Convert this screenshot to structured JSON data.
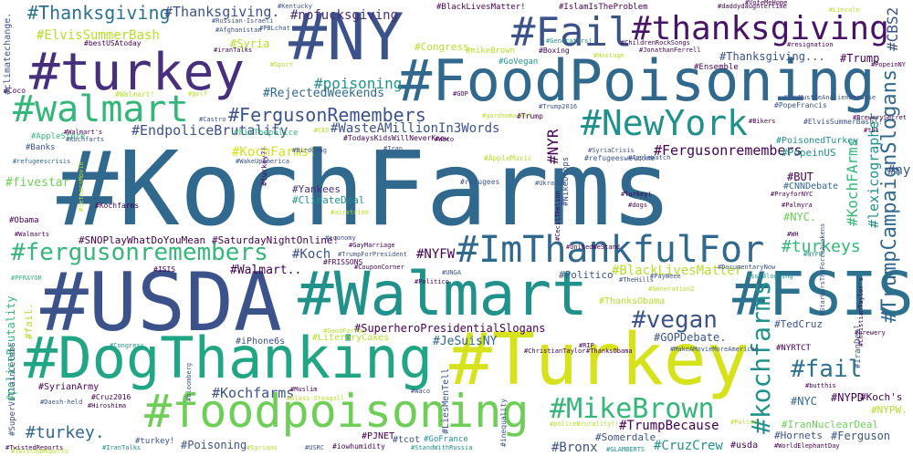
{
  "palette": {
    "deep_purple": "#440154",
    "purple": "#472f7d",
    "indigo": "#3b528b",
    "blue": "#31688e",
    "teal": "#21918c",
    "green": "#35b779",
    "light_green": "#6ece58",
    "lime": "#b5de2b",
    "yellow": "#d6e21b"
  },
  "words": [
    {
      "text": "#KochFarms",
      "color": "#31688e"
    },
    {
      "text": "#USDA",
      "color": "#3b528b"
    },
    {
      "text": "#Turkey",
      "color": "#d6e21b"
    },
    {
      "text": "#Walmart",
      "color": "#21918c"
    },
    {
      "text": "#FoodPoisoning",
      "color": "#31688e"
    },
    {
      "text": "#turkey",
      "color": "#472f7d"
    },
    {
      "text": "#NY",
      "color": "#3b528b"
    },
    {
      "text": "#FSIS",
      "color": "#2c728e"
    },
    {
      "text": "#DogThanking",
      "color": "#21a685"
    },
    {
      "text": "#foodpoisoning",
      "color": "#6ece58"
    },
    {
      "text": "#Fail",
      "color": "#3b528b"
    },
    {
      "text": "#thanksgiving",
      "color": "#481467"
    },
    {
      "text": "#NewYork",
      "color": "#21918c"
    },
    {
      "text": "#ImThankfulFor",
      "color": "#31688e"
    },
    {
      "text": "#walmart",
      "color": "#35b779"
    },
    {
      "text": "#fergusonremembers",
      "color": "#35b779"
    },
    {
      "text": "#MikeBrown",
      "color": "#35b779"
    },
    {
      "text": "#kochfarms",
      "color": "#21918c"
    },
    {
      "text": "#TrumpCampaignSlogans",
      "color": "#31688e"
    },
    {
      "text": "#vegan",
      "color": "#3b528b"
    },
    {
      "text": "#fail",
      "color": "#2c728e"
    },
    {
      "text": "#FergusonRemembers",
      "color": "#3b528b"
    },
    {
      "text": "#Thanksgiving",
      "color": "#2c728e"
    },
    {
      "text": "#ElvisSummerBash",
      "color": "#b5de2b"
    },
    {
      "text": "#Thanksgiving.",
      "color": "#3b528b"
    },
    {
      "text": "#nofucksgiving",
      "color": "#472f7d"
    },
    {
      "text": "#poisoning",
      "color": "#21918c"
    },
    {
      "text": "#KochFArms",
      "color": "#35b779"
    },
    {
      "text": "#turkeys",
      "color": "#35b779"
    },
    {
      "text": "#Fergusonremembers",
      "color": "#440154"
    },
    {
      "text": "#EndpoliceBrutality",
      "color": "#3b528b"
    },
    {
      "text": "#WasteAMillionIn3Words",
      "color": "#3b528b"
    },
    {
      "text": "#RejectedWeekends",
      "color": "#31688e"
    },
    {
      "text": "#KochFarms!",
      "color": "#d6e21b"
    },
    {
      "text": "#NYR",
      "color": "#440154"
    },
    {
      "text": "#lexicographer",
      "color": "#21918c"
    },
    {
      "text": "#turkey.",
      "color": "#31688e"
    },
    {
      "text": "#Kochfarms",
      "color": "#3b528b"
    },
    {
      "text": "#TrumpBecause",
      "color": "#440154"
    },
    {
      "text": "#CruzCrew",
      "color": "#21918c"
    },
    {
      "text": "#Bronx",
      "color": "#3b528b"
    },
    {
      "text": "#GOPDebate.",
      "color": "#3b528b"
    },
    {
      "text": "#JeSuisNY",
      "color": "#31688e"
    },
    {
      "text": "#SuperheroPresidentialSlogans",
      "color": "#440154"
    },
    {
      "text": "#BlackLivesMatter",
      "color": "#b5de2b"
    },
    {
      "text": "#NYFW",
      "color": "#440154"
    },
    {
      "text": "#Koch",
      "color": "#3b528b"
    },
    {
      "text": "#Walmart..",
      "color": "#440154"
    },
    {
      "text": "#SNOPlayWhatDoYouMean",
      "color": "#440154"
    },
    {
      "text": "#SaturdayNightOnline!",
      "color": "#440154"
    },
    {
      "text": "#CBS2",
      "color": "#3b528b"
    },
    {
      "text": "#Trump",
      "color": "#440154"
    },
    {
      "text": "#Thanksgiving...",
      "color": "#3b528b"
    },
    {
      "text": "#Congress",
      "color": "#b5de2b"
    },
    {
      "text": "#fivestar",
      "color": "#6ece58"
    },
    {
      "text": "#Yankees",
      "color": "#472f7d"
    },
    {
      "text": "#ClimateDeal",
      "color": "#21918c"
    },
    {
      "text": "#NYC.",
      "color": "#6ece58"
    },
    {
      "text": "#BUT",
      "color": "#440154"
    },
    {
      "text": "#ny",
      "color": "#3b528b"
    },
    {
      "text": "#NYC",
      "color": "#31688e"
    },
    {
      "text": "#NYPD",
      "color": "#440154"
    },
    {
      "text": "#TedCruz",
      "color": "#3b528b"
    },
    {
      "text": "#IranNuclearDeal",
      "color": "#6ece58"
    },
    {
      "text": "#Ferguson",
      "color": "#3b528b"
    },
    {
      "text": "#Koch's",
      "color": "#440154"
    },
    {
      "text": "#NYPW.",
      "color": "#b5de2b"
    },
    {
      "text": "#Hornets",
      "color": "#3b528b"
    },
    {
      "text": "#policeBrutality",
      "color": "#35b779"
    },
    {
      "text": "#Poisoning",
      "color": "#3b528b"
    },
    {
      "text": "#SyrianArmy",
      "color": "#440154"
    },
    {
      "text": "#Politico",
      "color": "#3b528b"
    },
    {
      "text": "#iPhone6s",
      "color": "#3b528b"
    },
    {
      "text": "#LiteraryCakes",
      "color": "#b5de2b"
    },
    {
      "text": "#Syria",
      "color": "#b5de2b"
    },
    {
      "text": "#ThanksObama",
      "color": "#b5de2b"
    },
    {
      "text": "#PopeinUS",
      "color": "#21918c"
    },
    {
      "text": "#PoisonedTurkey",
      "color": "#21918c"
    },
    {
      "text": "#CNNDebate",
      "color": "#31688e"
    },
    {
      "text": "#Obama",
      "color": "#440154"
    },
    {
      "text": "#Banks",
      "color": "#3b528b"
    },
    {
      "text": "#AppleStore",
      "color": "#35b779"
    },
    {
      "text": "#FixThepolice",
      "color": "#35b779"
    },
    {
      "text": "#GoVegan",
      "color": "#21918c"
    },
    {
      "text": "#mikeBrown",
      "color": "#b5de2b"
    },
    {
      "text": "#Boxing",
      "color": "#440154"
    },
    {
      "text": "#Ensemble",
      "color": "#440154"
    },
    {
      "text": "#PopeFrancis",
      "color": "#3b528b"
    },
    {
      "text": "#ElvisSummerBash!!!",
      "color": "#3b528b"
    },
    {
      "text": "#refugees",
      "color": "#3b528b"
    },
    {
      "text": "#AppleMusic",
      "color": "#b5de2b"
    },
    {
      "text": "#BlackLivesMatter!",
      "color": "#440154"
    },
    {
      "text": "#IslamIsTheProblem",
      "color": "#440154"
    },
    {
      "text": "#bestUSAtoday",
      "color": "#440154"
    },
    {
      "text": "#Russian-Israeli",
      "color": "#3b528b"
    },
    {
      "text": "#refugeescrisis",
      "color": "#31688e"
    },
    {
      "text": "#Kochfarts",
      "color": "#3b528b"
    },
    {
      "text": "#Walmart!",
      "color": "#b5de2b"
    },
    {
      "text": "#fail.",
      "color": "#b5de2b"
    },
    {
      "text": "#Walmarts",
      "color": "#440154"
    },
    {
      "text": "#ISIS",
      "color": "#440154"
    },
    {
      "text": "#PFRAYOR",
      "color": "#35b779"
    },
    {
      "text": "#Waco",
      "color": "#3b528b"
    },
    {
      "text": "#Congress.",
      "color": "#21918c"
    },
    {
      "text": "#bloomberg",
      "color": "#3b528b"
    },
    {
      "text": "#Cruz2016",
      "color": "#440154"
    },
    {
      "text": "#Daesh-held",
      "color": "#3b528b"
    },
    {
      "text": "#Hiroshima",
      "color": "#440154"
    },
    {
      "text": "#Syrians",
      "color": "#b5de2b"
    },
    {
      "text": "#USRC",
      "color": "#3b528b"
    },
    {
      "text": "#iowhumidity",
      "color": "#440154"
    },
    {
      "text": "#tcot",
      "color": "#3b528b"
    },
    {
      "text": "#GoFrance",
      "color": "#21918c"
    },
    {
      "text": "#StandWithRussia",
      "color": "#21918c"
    },
    {
      "text": "#inequality",
      "color": "#3b528b"
    },
    {
      "text": "#PJNET",
      "color": "#440154"
    },
    {
      "text": "#Somerdale",
      "color": "#3b528b"
    },
    {
      "text": "#GLAMBERTS",
      "color": "#21918c"
    },
    {
      "text": "#usda",
      "color": "#440154"
    },
    {
      "text": "#Police",
      "color": "#b5de2b"
    },
    {
      "text": "#WorldElephantDay",
      "color": "#440154"
    },
    {
      "text": "#TwistedReports",
      "color": "#440154"
    },
    {
      "text": "#IranTalks",
      "color": "#21918c"
    },
    {
      "text": "#turkey!",
      "color": "#3b528b"
    },
    {
      "text": "#WH",
      "color": "#440154"
    },
    {
      "text": "#Palmyra",
      "color": "#440154"
    },
    {
      "text": "#PrayforNYC",
      "color": "#440154"
    },
    {
      "text": "#NYFW",
      "color": "#21918c"
    },
    {
      "text": "#TheHills",
      "color": "#3b528b"
    },
    {
      "text": "#CecilThelion",
      "color": "#440154"
    },
    {
      "text": "#GayMarriage",
      "color": "#440154"
    },
    {
      "text": "#TrumpForPresident",
      "color": "#3b528b"
    },
    {
      "text": "#FRISSONS",
      "color": "#440154"
    },
    {
      "text": "#CouponCorner",
      "color": "#440154"
    },
    {
      "text": "#economy",
      "color": "#3b528b"
    },
    {
      "text": "#TodaysKidsWillNeverKnow",
      "color": "#440154"
    },
    {
      "text": "#BirdGang",
      "color": "#3b528b"
    },
    {
      "text": "#Iran",
      "color": "#3b528b"
    },
    {
      "text": "#SyriaCrisis",
      "color": "#3b528b"
    },
    {
      "text": "#refugeeswelcome",
      "color": "#3b528b"
    },
    {
      "text": "#Kentucky",
      "color": "#3b528b"
    },
    {
      "text": "#Afghanistan",
      "color": "#3b528b"
    },
    {
      "text": "#iranTalks",
      "color": "#440154"
    },
    {
      "text": "#PBLchat",
      "color": "#3b528b"
    },
    {
      "text": "#Sport",
      "color": "#b5de2b"
    },
    {
      "text": "#golf",
      "color": "#b5de2b"
    },
    {
      "text": "#Castro",
      "color": "#3b528b"
    },
    {
      "text": "#CEO",
      "color": "#b5de2b"
    },
    {
      "text": "#Coco",
      "color": "#440154"
    },
    {
      "text": "#Bikers",
      "color": "#440154"
    },
    {
      "text": "#BrewerySecret",
      "color": "#440154"
    },
    {
      "text": "#tbt",
      "color": "#440154"
    },
    {
      "text": "#resignation",
      "color": "#440154"
    },
    {
      "text": "#Lincoln",
      "color": "#b5de2b"
    },
    {
      "text": "#daddydaughtertime",
      "color": "#440154"
    },
    {
      "text": "#PopeinNY",
      "color": "#440154"
    },
    {
      "text": "#VoteMeHome",
      "color": "#440154"
    },
    {
      "text": "#ChildrenRockSongs",
      "color": "#440154"
    },
    {
      "text": "#JonathanFerrell",
      "color": "#440154"
    },
    {
      "text": "#GOP",
      "color": "#440154"
    },
    {
      "text": "#Hostage",
      "color": "#b5de2b"
    },
    {
      "text": "#Trump2016",
      "color": "#3b528b"
    },
    {
      "text": "#brewery",
      "color": "#440154"
    },
    {
      "text": "#butthis",
      "color": "#440154"
    },
    {
      "text": "#IranDeal",
      "color": "#3b528b"
    },
    {
      "text": "#ChristianTaylor",
      "color": "#440154"
    },
    {
      "text": "#ChristianTaylor's",
      "color": "#440154"
    },
    {
      "text": "#ThanksObama",
      "color": "#440154"
    },
    {
      "text": "#MakeAMovieMoreAmerican",
      "color": "#3b528b"
    },
    {
      "text": "#NYRTCT",
      "color": "#440154"
    },
    {
      "text": "#LiesMenTell",
      "color": "#3b528b"
    },
    {
      "text": "#RIP",
      "color": "#440154"
    },
    {
      "text": "#policeBrutality!!",
      "color": "#b5de2b"
    },
    {
      "text": "#TwistedReports",
      "color": "#b5de2b"
    },
    {
      "text": "#Generation2",
      "color": "#b5de2b"
    },
    {
      "text": "#DocumentaryNow",
      "color": "#3b528b"
    },
    {
      "text": "#sssBlogging",
      "color": "#21918c"
    },
    {
      "text": "#PayWeee",
      "color": "#3b528b"
    },
    {
      "text": "#Turkey!",
      "color": "#440154"
    },
    {
      "text": "#StarWarsTheForceAwakens",
      "color": "#3b528b"
    },
    {
      "text": "#AppleWatch",
      "color": "#3b528b"
    },
    {
      "text": "#UnitedWeStand",
      "color": "#440154"
    },
    {
      "text": "#Generators!",
      "color": "#21918c"
    },
    {
      "text": "#GoodForYou",
      "color": "#b5de2b"
    },
    {
      "text": "#UNGA",
      "color": "#3b528b"
    },
    {
      "text": "#Muslim",
      "color": "#440154"
    },
    {
      "text": "#lettersMovie",
      "color": "#b5de2b"
    },
    {
      "text": "#Glass-Steagall",
      "color": "#b5de2b"
    },
    {
      "text": "#airstrike",
      "color": "#b5de2b"
    },
    {
      "text": "#gardenmarket",
      "color": "#b5de2b"
    },
    {
      "text": "#WakeUpAmerica",
      "color": "#3b528b"
    },
    {
      "text": "#turkey?!",
      "color": "#440154"
    },
    {
      "text": "#NikeDrops",
      "color": "#3b528b"
    },
    {
      "text": "#Ukraine",
      "color": "#3b528b"
    },
    {
      "text": "#YouMustBeAnAlienBecause",
      "color": "#3b528b"
    },
    {
      "text": "#dogs",
      "color": "#440154"
    },
    {
      "text": "#Politico",
      "color": "#440154"
    },
    {
      "text": "#Kochfarms",
      "color": "#440154"
    },
    {
      "text": "#Walmart's",
      "color": "#440154"
    },
    {
      "text": "#SuperVillainCelebs",
      "color": "#3b528b"
    },
    {
      "text": "#Waco",
      "color": "#440154"
    },
    {
      "text": "#climatechange.",
      "color": "#3b528b"
    },
    {
      "text": "#Trump",
      "color": "#440154"
    }
  ]
}
